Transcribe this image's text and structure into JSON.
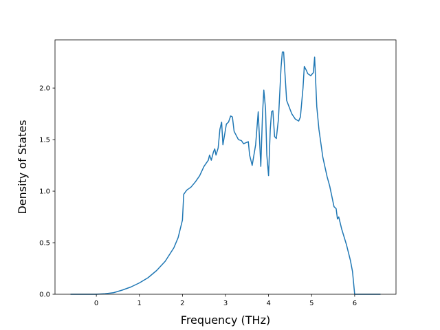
{
  "chart_data": {
    "type": "line",
    "x_label": "Frequency (THz)",
    "y_label": "Density of States",
    "color": "#1f77b4",
    "x": [
      -0.6,
      -0.4,
      -0.2,
      0,
      0.2,
      0.4,
      0.6,
      0.8,
      1.0,
      1.2,
      1.4,
      1.6,
      1.8,
      1.9,
      2.0,
      2.03,
      2.1,
      2.2,
      2.3,
      2.4,
      2.5,
      2.6,
      2.63,
      2.67,
      2.72,
      2.75,
      2.78,
      2.83,
      2.87,
      2.91,
      2.94,
      2.98,
      3.02,
      3.07,
      3.12,
      3.16,
      3.2,
      3.3,
      3.37,
      3.42,
      3.53,
      3.56,
      3.62,
      3.7,
      3.76,
      3.82,
      3.86,
      3.89,
      3.93,
      3.96,
      4.0,
      4.04,
      4.07,
      4.1,
      4.14,
      4.18,
      4.23,
      4.29,
      4.32,
      4.35,
      4.42,
      4.54,
      4.62,
      4.7,
      4.74,
      4.8,
      4.83,
      4.88,
      4.91,
      4.98,
      5.04,
      5.07,
      5.12,
      5.17,
      5.22,
      5.26,
      5.36,
      5.42,
      5.52,
      5.57,
      5.6,
      5.63,
      5.7,
      5.81,
      5.9,
      5.95,
      6.0,
      6.2,
      6.4,
      6.6
    ],
    "values": [
      0,
      0,
      0,
      0,
      0.005,
      0.015,
      0.04,
      0.07,
      0.11,
      0.16,
      0.23,
      0.32,
      0.45,
      0.55,
      0.72,
      0.97,
      1.01,
      1.04,
      1.09,
      1.15,
      1.24,
      1.3,
      1.35,
      1.3,
      1.38,
      1.41,
      1.35,
      1.42,
      1.6,
      1.67,
      1.45,
      1.55,
      1.65,
      1.67,
      1.73,
      1.72,
      1.58,
      1.5,
      1.49,
      1.46,
      1.48,
      1.35,
      1.25,
      1.45,
      1.77,
      1.24,
      1.75,
      1.98,
      1.8,
      1.35,
      1.15,
      1.6,
      1.77,
      1.78,
      1.53,
      1.51,
      1.7,
      2.2,
      2.35,
      2.35,
      1.88,
      1.75,
      1.7,
      1.68,
      1.72,
      2.0,
      2.21,
      2.17,
      2.14,
      2.12,
      2.15,
      2.3,
      1.82,
      1.6,
      1.45,
      1.33,
      1.14,
      1.05,
      0.85,
      0.83,
      0.73,
      0.75,
      0.63,
      0.48,
      0.33,
      0.22,
      0,
      0,
      0,
      0
    ],
    "xlim": [
      -0.96,
      6.96
    ],
    "ylim": [
      0,
      2.4675
    ],
    "xticks": [
      0,
      1,
      2,
      3,
      4,
      5,
      6
    ],
    "yticks": [
      {
        "value": 0,
        "label": "0.0"
      },
      0.5,
      {
        "value": 1,
        "label": "1.0"
      },
      1.5,
      {
        "value": 2,
        "label": "2.0"
      }
    ]
  }
}
